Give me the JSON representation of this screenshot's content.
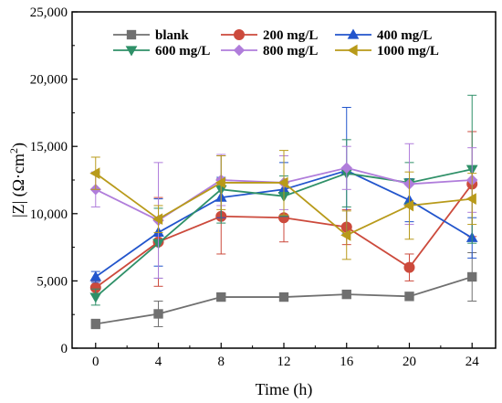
{
  "chart_data": {
    "type": "line",
    "xlabel": "Time (h)",
    "ylabel": "|Z| (Ω·cm²)",
    "ylabel_main": "|Z| (Ω·cm",
    "ylabel_sup": "2",
    "ylabel_close": ")",
    "x": [
      0,
      4,
      8,
      12,
      16,
      20,
      24
    ],
    "xlim": [
      -1.5,
      25.5
    ],
    "ylim": [
      0,
      25000
    ],
    "x_ticks": [
      "0",
      "4",
      "8",
      "12",
      "16",
      "20",
      "24"
    ],
    "y_ticks": [
      "0",
      "5,000",
      "10,000",
      "15,000",
      "20,000",
      "25,000"
    ],
    "legend_position": "top",
    "series": [
      {
        "name": "blank",
        "color": "#707070",
        "marker": "square",
        "values": [
          1800,
          2550,
          3800,
          3800,
          4000,
          3850,
          5300
        ],
        "errors": [
          350,
          950,
          250,
          200,
          300,
          250,
          1800
        ]
      },
      {
        "name": "200 mg/L",
        "color": "#cc4a3c",
        "marker": "circle",
        "values": [
          4500,
          7900,
          9800,
          9700,
          9000,
          6000,
          12200
        ],
        "errors": [
          500,
          3300,
          2800,
          1800,
          1300,
          1000,
          3900
        ]
      },
      {
        "name": "400 mg/L",
        "color": "#2255cc",
        "marker": "triangle-up",
        "values": [
          5300,
          8600,
          11200,
          11800,
          13200,
          11000,
          8200
        ],
        "errors": [
          400,
          2500,
          1500,
          2000,
          4700,
          1600,
          1500
        ]
      },
      {
        "name": "600 mg/L",
        "color": "#2f9068",
        "marker": "triangle-down",
        "values": [
          3800,
          7800,
          11800,
          11300,
          13000,
          12300,
          13300
        ],
        "errors": [
          600,
          2600,
          2500,
          1500,
          2500,
          1500,
          5500
        ]
      },
      {
        "name": "800 mg/L",
        "color": "#b07ddb",
        "marker": "diamond",
        "values": [
          11800,
          9500,
          12500,
          12300,
          13400,
          12200,
          12500
        ],
        "errors": [
          1300,
          4300,
          1900,
          2000,
          1600,
          3000,
          2400
        ]
      },
      {
        "name": "1000 mg/L",
        "color": "#b89a1a",
        "marker": "triangle-left",
        "values": [
          13000,
          9600,
          12300,
          12300,
          8400,
          10600,
          11100
        ],
        "errors": [
          1200,
          1000,
          2000,
          2400,
          1800,
          2500,
          1900
        ]
      }
    ]
  }
}
